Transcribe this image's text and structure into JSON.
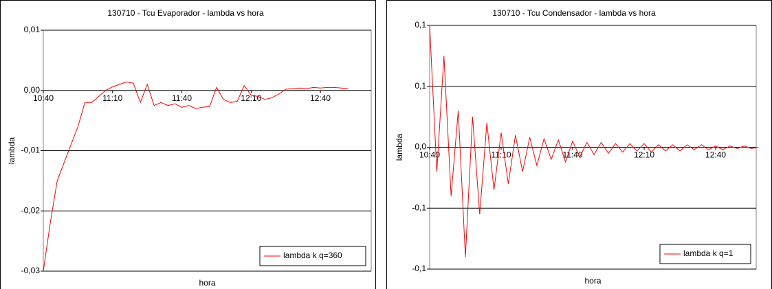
{
  "chart_data": [
    {
      "type": "line",
      "title": "130710 - Tcu  Evaporador -  lambda vs hora",
      "x_label": "hora",
      "y_label": "lambda",
      "x": [
        "10:40",
        "10:43",
        "10:46",
        "10:49",
        "10:52",
        "10:55",
        "10:58",
        "11:01",
        "11:04",
        "11:07",
        "11:10",
        "11:13",
        "11:16",
        "11:19",
        "11:22",
        "11:25",
        "11:28",
        "11:31",
        "11:34",
        "11:37",
        "11:40",
        "11:43",
        "11:46",
        "11:49",
        "11:52",
        "11:55",
        "11:58",
        "12:01",
        "12:04",
        "12:07",
        "12:10",
        "12:13",
        "12:16",
        "12:19",
        "12:22",
        "12:25",
        "12:28",
        "12:31",
        "12:34",
        "12:37",
        "12:40",
        "12:43",
        "12:46",
        "12:49",
        "12:52"
      ],
      "series": [
        {
          "name": "lambda k q=360",
          "color": "#ff0000",
          "values": [
            -0.03,
            -0.022,
            -0.015,
            -0.012,
            -0.009,
            -0.006,
            -0.002,
            -0.002,
            -0.001,
            0.0,
            0.0006,
            0.001,
            0.0014,
            0.0012,
            -0.002,
            0.001,
            -0.0025,
            -0.002,
            -0.0025,
            -0.0022,
            -0.0028,
            -0.0025,
            -0.003,
            -0.0028,
            -0.0027,
            0.0005,
            -0.0015,
            -0.002,
            -0.0018,
            0.0008,
            -0.0008,
            -0.001,
            -0.0015,
            -0.0012,
            -0.0006,
            0.0002,
            0.0003,
            0.0004,
            0.0003,
            0.0005,
            0.0004,
            0.0005,
            0.0005,
            0.0004,
            0.0003
          ]
        }
      ],
      "xlim": [
        "10:40",
        "13:02"
      ],
      "xticks": [
        "10:40",
        "11:10",
        "11:40",
        "12:10",
        "12:40"
      ],
      "ylim": [
        -0.03,
        0.01
      ],
      "yticks": [
        {
          "value": -0.03,
          "label": "-0,03"
        },
        {
          "value": -0.02,
          "label": "-0,02"
        },
        {
          "value": -0.01,
          "label": "-0,01"
        },
        {
          "value": 0,
          "label": "0,00"
        },
        {
          "value": 0.01,
          "label": "0,01"
        }
      ],
      "grid": true,
      "legend": "lower right"
    },
    {
      "type": "line",
      "title": "130710 - Tcu  Condensador -  lambda vs hora",
      "x_label": "hora",
      "y_label": "lambda",
      "x": [
        "10:40",
        "10:43",
        "10:46",
        "10:49",
        "10:52",
        "10:55",
        "10:58",
        "11:01",
        "11:04",
        "11:07",
        "11:10",
        "11:13",
        "11:16",
        "11:19",
        "11:22",
        "11:25",
        "11:28",
        "11:31",
        "11:34",
        "11:37",
        "11:40",
        "11:43",
        "11:46",
        "11:49",
        "11:52",
        "11:55",
        "11:58",
        "12:01",
        "12:04",
        "12:07",
        "12:10",
        "12:13",
        "12:16",
        "12:19",
        "12:22",
        "12:25",
        "12:28",
        "12:31",
        "12:34",
        "12:37",
        "12:40",
        "12:43",
        "12:46",
        "12:49",
        "12:52",
        "12:55",
        "12:58"
      ],
      "series": [
        {
          "name": "lambda k q=1",
          "color": "#ff0000",
          "values": [
            0.1,
            -0.02,
            0.075,
            -0.04,
            0.03,
            -0.09,
            0.025,
            -0.055,
            0.02,
            -0.035,
            0.012,
            -0.03,
            0.01,
            -0.02,
            0.008,
            -0.015,
            0.007,
            -0.01,
            0.006,
            -0.012,
            0.005,
            -0.008,
            0.004,
            -0.006,
            0.004,
            -0.005,
            0.003,
            -0.004,
            0.003,
            -0.003,
            0.003,
            -0.004,
            0.002,
            -0.003,
            0.002,
            -0.003,
            0.002,
            -0.002,
            0.002,
            -0.002,
            0.001,
            -0.002,
            0.001,
            -0.001,
            0.001,
            -0.001,
            0.0
          ]
        }
      ],
      "xlim": [
        "10:40",
        "12:57"
      ],
      "xticks": [
        "10:40",
        "11:10",
        "11:40",
        "12:10",
        "12:40"
      ],
      "ylim": [
        -0.1,
        0.1
      ],
      "yticks": [
        {
          "value": -0.1,
          "label": "-0,1"
        },
        {
          "value": -0.05,
          "label": "-0,1"
        },
        {
          "value": 0,
          "label": "0,0"
        },
        {
          "value": 0.05,
          "label": "0,1"
        },
        {
          "value": 0.1,
          "label": "0,1"
        }
      ],
      "grid": true,
      "legend": "lower right"
    }
  ]
}
